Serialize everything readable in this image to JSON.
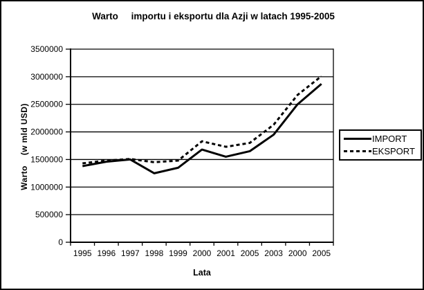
{
  "chart_data": {
    "type": "line",
    "title": "Warto     importu i eksportu dla Azji w latach 1995-2005",
    "xlabel": "Lata",
    "ylabel": "Warto    (w mld USD)",
    "categories": [
      "1995",
      "1996",
      "1997",
      "1998",
      "1999",
      "2000",
      "2001",
      "2005",
      "2003",
      "2000",
      "2005"
    ],
    "series": [
      {
        "name": "IMPORT",
        "style": "solid",
        "values": [
          1380000,
          1460000,
          1500000,
          1250000,
          1350000,
          1680000,
          1550000,
          1650000,
          1950000,
          2500000,
          2870000
        ]
      },
      {
        "name": "EKSPORT",
        "style": "dashed",
        "values": [
          1430000,
          1480000,
          1510000,
          1450000,
          1480000,
          1830000,
          1730000,
          1800000,
          2130000,
          2670000,
          3010000
        ]
      }
    ],
    "ylim": [
      0,
      3500000
    ],
    "ytick_step": 500000,
    "yticks": [
      "0",
      "500000",
      "1000000",
      "1500000",
      "2000000",
      "2500000",
      "3000000",
      "3500000"
    ],
    "grid": "horizontal",
    "legend_position": "right",
    "line_color": "#000000",
    "background_color": "#ffffff"
  }
}
